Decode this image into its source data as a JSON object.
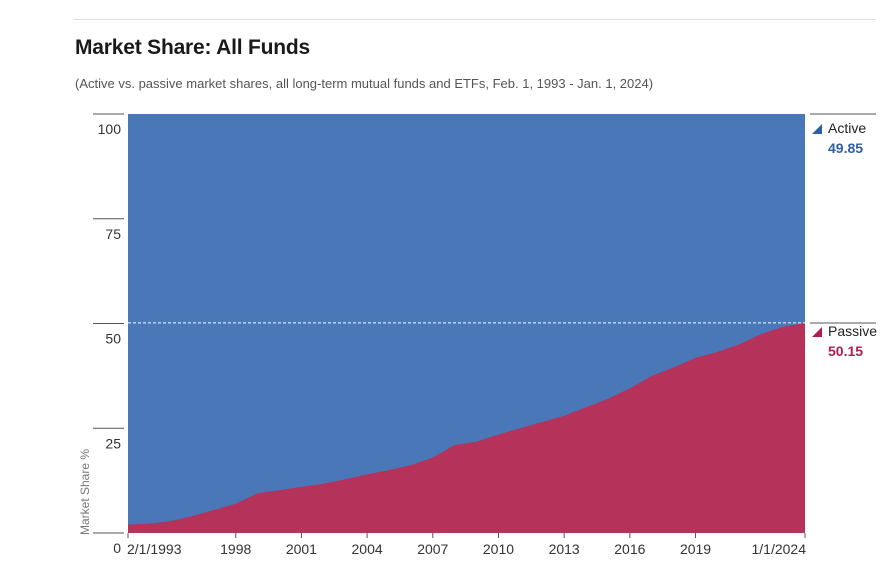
{
  "header": {
    "title": "Market Share: All Funds",
    "subtitle": "(Active vs. passive market shares, all long-term mutual funds and ETFs, Feb. 1, 1993 - Jan. 1, 2024)"
  },
  "colors": {
    "active": "#4a77b8",
    "passive": "#b5325a",
    "active_text": "#2e5ea8",
    "passive_text": "#b01e4e"
  },
  "chart_data": {
    "type": "area",
    "title": "Market Share: All Funds",
    "subtitle": "(Active vs. passive market shares, all long-term mutual funds and ETFs, Feb. 1, 1993 - Jan. 1, 2024)",
    "xlabel": "",
    "ylabel": "Market Share %",
    "ylim": [
      0,
      100
    ],
    "xlim": [
      1993.08,
      2024.0
    ],
    "y_ticks": [
      0,
      25,
      50,
      75,
      100
    ],
    "x_ticks": [
      {
        "label": "2/1/1993",
        "x": 1993.08
      },
      {
        "label": "1998",
        "x": 1998
      },
      {
        "label": "2001",
        "x": 2001
      },
      {
        "label": "2004",
        "x": 2004
      },
      {
        "label": "2007",
        "x": 2007
      },
      {
        "label": "2010",
        "x": 2010
      },
      {
        "label": "2013",
        "x": 2013
      },
      {
        "label": "2016",
        "x": 2016
      },
      {
        "label": "2019",
        "x": 2019
      },
      {
        "label": "1/1/2024",
        "x": 2024.0
      }
    ],
    "stacked": true,
    "reference_line": 50.15,
    "series": [
      {
        "name": "Passive",
        "points": [
          [
            1993.08,
            2.0
          ],
          [
            1994,
            2.2
          ],
          [
            1995,
            2.8
          ],
          [
            1996,
            4.0
          ],
          [
            1997,
            5.5
          ],
          [
            1998,
            7.0
          ],
          [
            1999,
            9.5
          ],
          [
            2000,
            10.2
          ],
          [
            2001,
            11.0
          ],
          [
            2002,
            11.8
          ],
          [
            2003,
            12.8
          ],
          [
            2004,
            14.0
          ],
          [
            2005,
            15.0
          ],
          [
            2006,
            16.2
          ],
          [
            2007,
            18.0
          ],
          [
            2008,
            21.0
          ],
          [
            2009,
            21.8
          ],
          [
            2010,
            23.5
          ],
          [
            2011,
            25.0
          ],
          [
            2012,
            26.5
          ],
          [
            2013,
            28.0
          ],
          [
            2014,
            30.0
          ],
          [
            2015,
            32.0
          ],
          [
            2016,
            34.5
          ],
          [
            2017,
            37.5
          ],
          [
            2018,
            39.5
          ],
          [
            2019,
            41.8
          ],
          [
            2020,
            43.2
          ],
          [
            2021,
            45.0
          ],
          [
            2022,
            47.5
          ],
          [
            2023,
            49.2
          ],
          [
            2024.0,
            50.15
          ]
        ],
        "last_value": "50.15"
      },
      {
        "name": "Active",
        "fills_to": 100,
        "last_value": "49.85"
      }
    ],
    "legend": [
      {
        "name": "Active",
        "value": "49.85"
      },
      {
        "name": "Passive",
        "value": "50.15"
      }
    ]
  }
}
